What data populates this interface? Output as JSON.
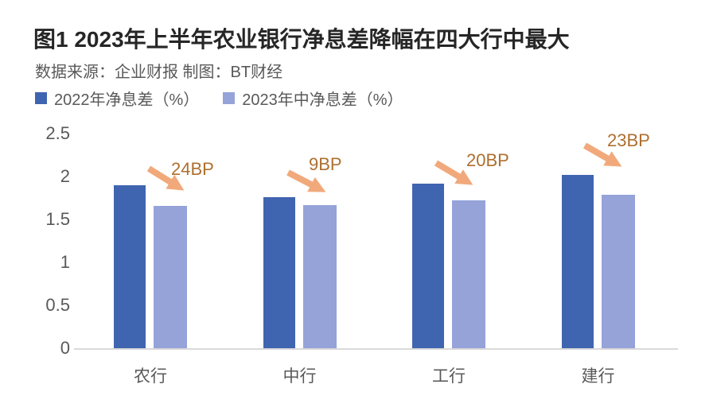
{
  "header": {
    "title": "图1 2023年上半年农业银行净息差降幅在四大行中最大",
    "source": "数据来源：企业财报 制图：BT财经"
  },
  "colors": {
    "series_2022": "#4065B0",
    "series_2023": "#95A3D9",
    "arrow": "#F1A97B",
    "annotation_text": "#AE6F2F",
    "axis_text": "#595959",
    "title_text": "#262626",
    "baseline": "#D9D9D9"
  },
  "chart_data": {
    "type": "bar",
    "title": "图1 2023年上半年农业银行净息差降幅在四大行中最大",
    "source_note": "数据来源：企业财报 制图：BT财经",
    "categories": [
      "农行",
      "中行",
      "工行",
      "建行"
    ],
    "series": [
      {
        "name": "2022年净息差（%）",
        "color": "#4065B0",
        "values": [
          1.9,
          1.76,
          1.92,
          2.02
        ]
      },
      {
        "name": "2023年中净息差（%）",
        "color": "#95A3D9",
        "values": [
          1.66,
          1.67,
          1.72,
          1.79
        ]
      }
    ],
    "annotations": [
      "24BP",
      "9BP",
      "20BP",
      "23BP"
    ],
    "xlabel": "",
    "ylabel": "",
    "ylim": [
      0,
      2.5
    ],
    "y_ticks": [
      "0",
      "0.5",
      "1",
      "1.5",
      "2",
      "2.5"
    ],
    "grid": false,
    "legend_position": "top-left"
  }
}
